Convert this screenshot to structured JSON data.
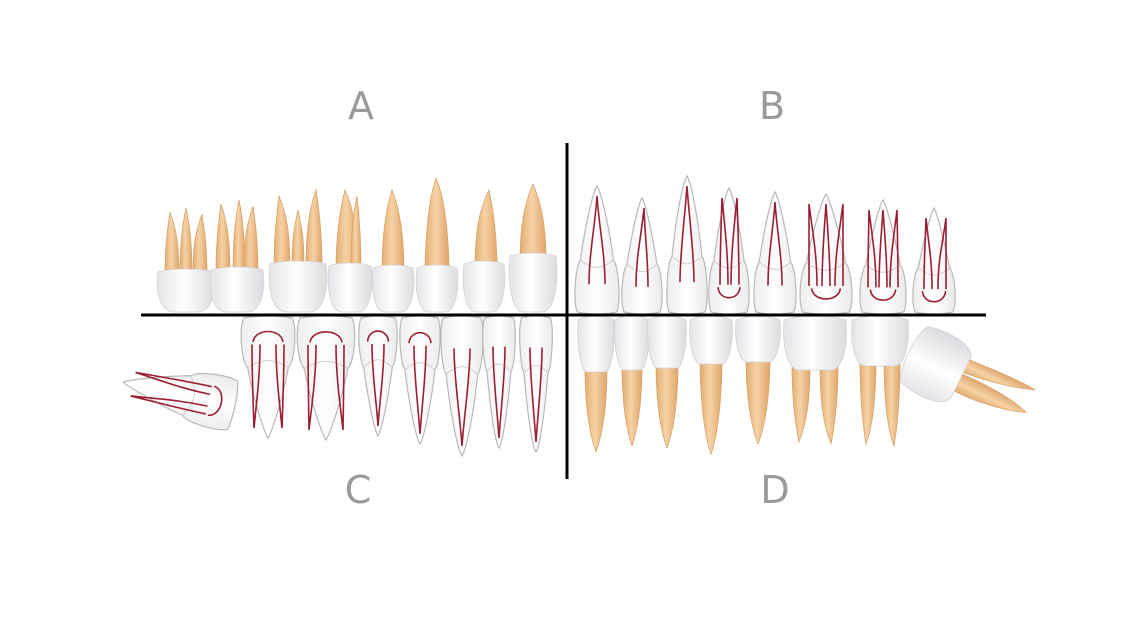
{
  "quadrants": {
    "a": {
      "label": "A",
      "style": "solid"
    },
    "b": {
      "label": "B",
      "style": "transparent"
    },
    "c": {
      "label": "C",
      "style": "transparent"
    },
    "d": {
      "label": "D",
      "style": "solid"
    }
  },
  "colors": {
    "crown": "#f6f6f8",
    "root": "#f1c896",
    "root_shade": "#e2ad72",
    "outline": "#b9b9b9",
    "pulp": "#9c1e32",
    "divider": "#000000",
    "label": "#9a9a9a"
  }
}
